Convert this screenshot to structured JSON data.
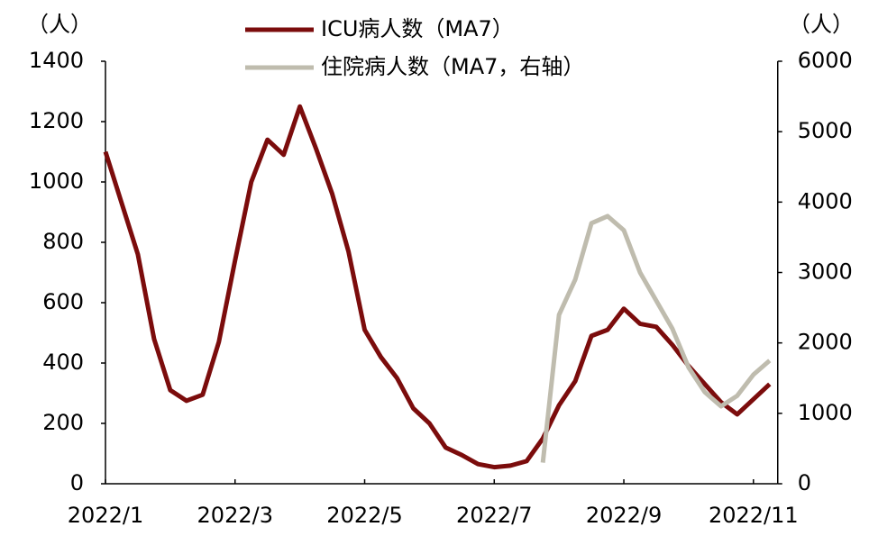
{
  "chart_data": {
    "type": "line",
    "y_unit": "（人）",
    "y2_unit": "（人）",
    "categories": [
      "2022/1",
      null,
      null,
      null,
      null,
      null,
      null,
      null,
      "2022/3",
      null,
      null,
      null,
      null,
      null,
      null,
      null,
      "2022/5",
      null,
      null,
      null,
      null,
      null,
      null,
      null,
      "2022/7",
      null,
      null,
      null,
      null,
      null,
      null,
      null,
      "2022/9",
      null,
      null,
      null,
      null,
      null,
      null,
      null,
      "2022/11",
      null
    ],
    "series": [
      {
        "name": "ICU病人数（MA7）",
        "color": "#7b0c0c",
        "values": [
          1100,
          930,
          760,
          480,
          310,
          275,
          295,
          470,
          740,
          1000,
          1140,
          1090,
          1250,
          1110,
          960,
          770,
          510,
          420,
          350,
          250,
          200,
          120,
          95,
          65,
          55,
          60,
          75,
          150,
          260,
          340,
          490,
          510,
          580,
          530,
          520,
          460,
          390,
          330,
          270,
          230,
          280,
          330
        ]
      },
      {
        "name": "住院病人数（MA7，右轴）",
        "color": "#bfbcae",
        "axis": "y2",
        "values": [
          null,
          null,
          null,
          null,
          null,
          null,
          null,
          null,
          null,
          null,
          null,
          null,
          null,
          null,
          null,
          null,
          null,
          null,
          null,
          null,
          null,
          null,
          null,
          null,
          null,
          null,
          null,
          300,
          2400,
          2900,
          3700,
          3800,
          3600,
          3000,
          2600,
          2200,
          1650,
          1300,
          1100,
          1250,
          1550,
          1750
        ]
      }
    ],
    "ylim": [
      0,
      1400
    ],
    "yticks": [
      0,
      200,
      400,
      600,
      800,
      1000,
      1200,
      1400
    ],
    "y2lim": [
      0,
      6000
    ],
    "y2ticks": [
      0,
      1000,
      2000,
      3000,
      4000,
      5000,
      6000
    ],
    "grid": false,
    "legend": "top"
  }
}
